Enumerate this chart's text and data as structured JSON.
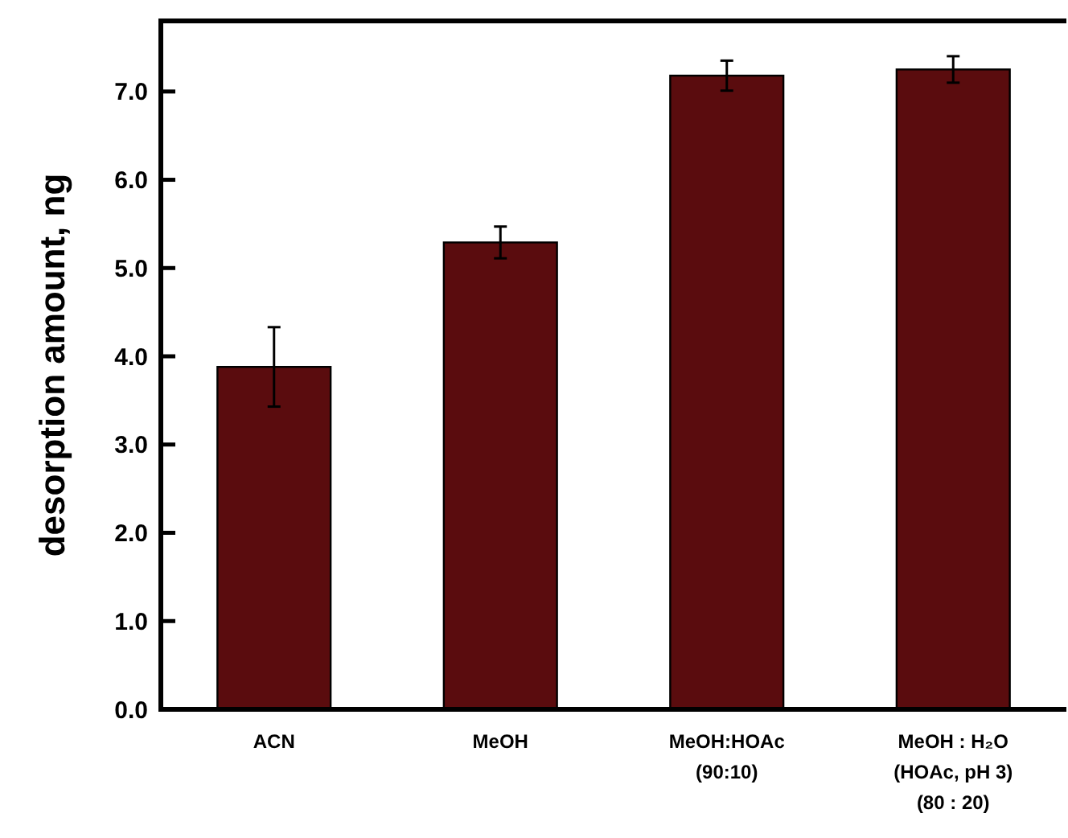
{
  "chart_data": {
    "type": "bar",
    "ylabel": "desorption amount, ng",
    "categories": [
      "ACN",
      "MeOH",
      "MeOH:HOAc\n(90:10)",
      "MeOH : H₂O\n(HOAc, pH 3)\n(80 : 20)"
    ],
    "values": [
      3.88,
      5.29,
      7.18,
      7.25
    ],
    "errors": [
      0.45,
      0.18,
      0.17,
      0.15
    ],
    "color": "#5a0c0e",
    "ylim": [
      0,
      7.8
    ],
    "yticks": [
      {
        "value": 0,
        "label": "0.0"
      },
      {
        "value": 1,
        "label": "1.0"
      },
      {
        "value": 2,
        "label": "2.0"
      },
      {
        "value": 3,
        "label": "3.0"
      },
      {
        "value": 4,
        "label": "4.0"
      },
      {
        "value": 5,
        "label": "5.0"
      },
      {
        "value": 6,
        "label": "6.0"
      },
      {
        "value": 7,
        "label": "7.0"
      }
    ],
    "grid": false
  }
}
